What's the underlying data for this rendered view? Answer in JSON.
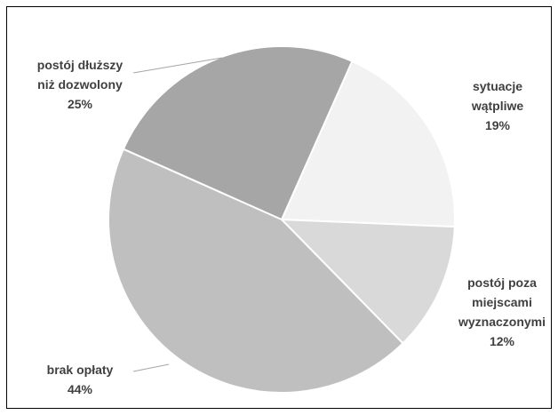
{
  "chart_data": {
    "type": "pie",
    "categories": [
      "sytuacje\nwątpliwe",
      "postój poza\nmiejscami\nwyznaczonymi",
      "brak opłaty",
      "postój dłuższy\nniż dozwolony"
    ],
    "values": [
      19,
      12,
      44,
      25
    ],
    "value_labels": [
      "19%",
      "12%",
      "44%",
      "25%"
    ],
    "colors": [
      "#f2f2f2",
      "#d9d9d9",
      "#bfbfbf",
      "#a6a6a6"
    ]
  }
}
